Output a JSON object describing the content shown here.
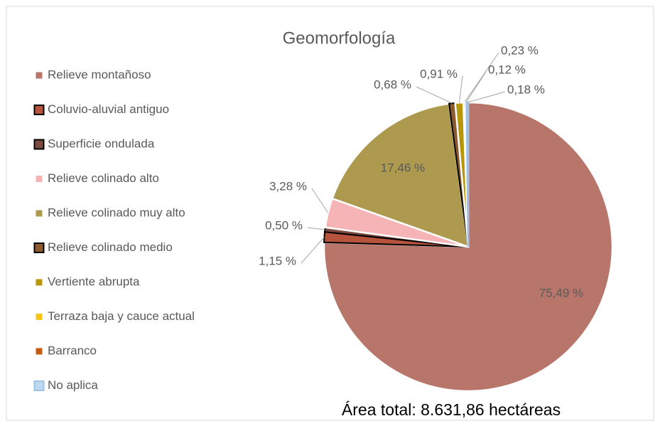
{
  "chart_data": {
    "type": "pie",
    "title": "Geomorfología",
    "annotation": "Área total: 8.631,86  hectáreas",
    "categories": [
      "Relieve montañoso",
      "Coluvio-aluvial antiguo",
      "Superficie ondulada",
      "Relieve colinado alto",
      "Relieve colinado muy alto",
      "Relieve colinado medio",
      "Vertiente abrupta",
      "Terraza baja y cauce actual",
      "Barranco",
      "No aplica"
    ],
    "values": [
      75.49,
      1.15,
      0.5,
      3.28,
      17.46,
      0.68,
      0.91,
      0.23,
      0.12,
      0.18
    ],
    "value_labels": [
      "75,49 %",
      "1,15 %",
      "0,50 %",
      "3,28 %",
      "17,46 %",
      "0,68 %",
      "0,91 %",
      "0,23 %",
      "0,12 %",
      "0,18 %"
    ],
    "colors": [
      "#b8766b",
      "#b5533c",
      "#7b4b3f",
      "#f7b4b7",
      "#ad9a4f",
      "#8c5a2e",
      "#b8960b",
      "#f5c518",
      "#c55a11",
      "#bdd7ee"
    ],
    "edgecolors": [
      "#ffffff",
      "#000000",
      "#000000",
      "#ffffff",
      "#ffffff",
      "#000000",
      "#ffffff",
      "#ffffff",
      "#ffffff",
      "#9dc3e6"
    ],
    "legend": "left"
  }
}
